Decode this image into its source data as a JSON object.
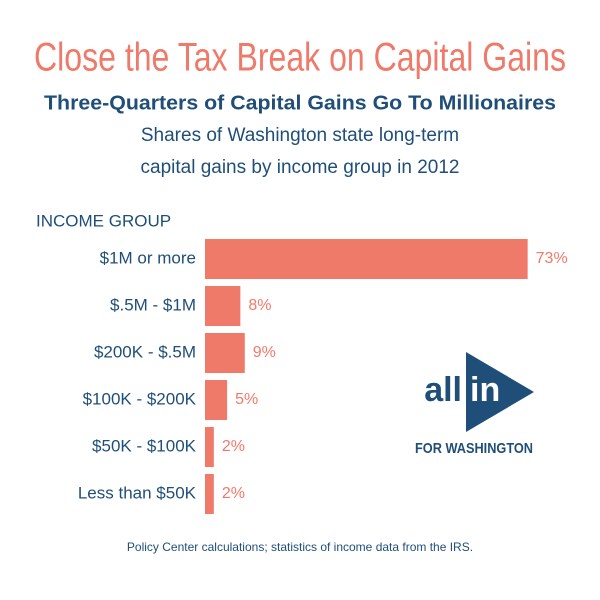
{
  "chart_data": {
    "type": "bar",
    "orientation": "horizontal",
    "title": "Close the Tax Break on Capital Gains",
    "subtitle": "Three-Quarters of Capital Gains Go To Millionaires",
    "description": [
      "Shares of Washington state long-term",
      "capital gains by income group in 2012"
    ],
    "y_label": "INCOME GROUP",
    "categories": [
      "$1M or more",
      "$.5M - $1M",
      "$200K - $.5M",
      "$100K - $200K",
      "$50K - $100K",
      "Less than $50K"
    ],
    "values": [
      73,
      8,
      9,
      5,
      2,
      2
    ],
    "value_labels": [
      "73%",
      "8%",
      "9%",
      "5%",
      "2%",
      "2%"
    ],
    "color": "#f07a6a",
    "source": "Policy Center calculations; statistics of income data from the IRS."
  },
  "logo": {
    "word_left": "all",
    "word_right": "in",
    "tagline": "FOR WASHINGTON"
  }
}
